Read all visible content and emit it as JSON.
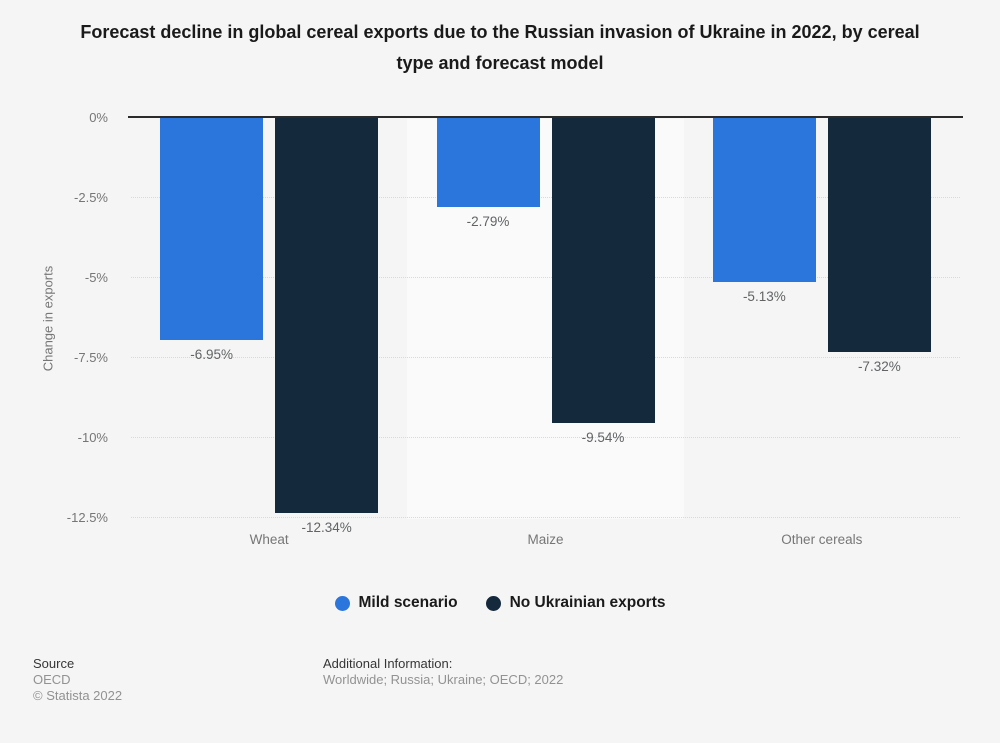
{
  "page": {
    "background": "#f5f5f5"
  },
  "chart_data": {
    "type": "bar",
    "title": "Forecast decline in global cereal exports due to the Russian invasion of Ukraine in 2022, by cereal type and forecast model",
    "categories": [
      "Wheat",
      "Maize",
      "Other cereals"
    ],
    "series": [
      {
        "name": "Mild scenario",
        "color": "#2b76dd",
        "values": [
          -6.95,
          -2.79,
          -5.13
        ],
        "labels": [
          "-6.95%",
          "-2.79%",
          "-5.13%"
        ]
      },
      {
        "name": "No Ukrainian exports",
        "color": "#15293d",
        "values": [
          -12.34,
          -9.54,
          -7.32
        ],
        "labels": [
          "-12.34%",
          "-9.54%",
          "-7.32%"
        ]
      }
    ],
    "xlabel": "",
    "ylabel": "Change in exports",
    "yticks": [
      "0%",
      "-2.5%",
      "-5%",
      "-7.5%",
      "-10%",
      "-12.5%"
    ],
    "ylim": [
      -12.5,
      0
    ],
    "grid": "horizontal-dotted",
    "legend_position": "bottom",
    "colors": {
      "plot_band": "#fafafa",
      "gridline": "#d9d9d9",
      "axis_line": "#2b2b2b",
      "tick_text": "#767676",
      "data_label_text": "#616365",
      "title_text": "#1a1a1a"
    }
  },
  "footer": {
    "source_label": "Source",
    "source_value": "OECD",
    "copyright": "© Statista 2022",
    "additional_label": "Additional Information:",
    "additional_value": "Worldwide; Russia; Ukraine; OECD; 2022"
  }
}
